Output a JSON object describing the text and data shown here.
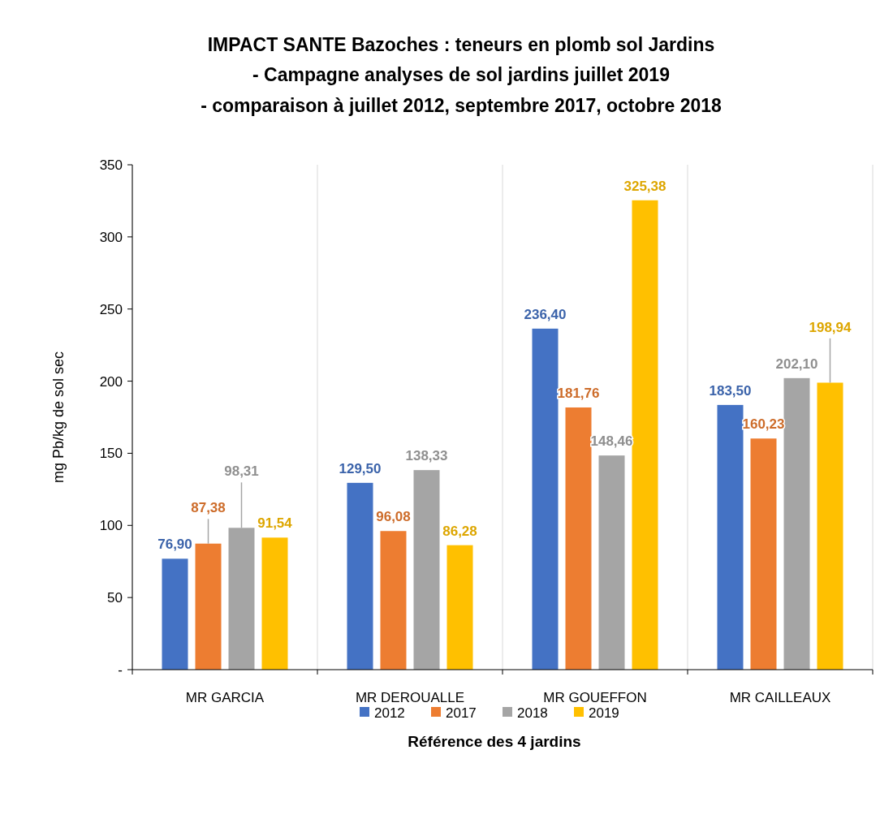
{
  "chart_data": {
    "type": "bar",
    "title": "IMPACT SANTE Bazoches : teneurs en plomb sol Jardins",
    "subtitle": "- Campagne analyses de sol jardins juillet 2019\n- comparaison à juillet 2012, septembre 2017, octobre 2018",
    "xlabel": "Référence des 4 jardins",
    "ylabel": "mg Pb/kg de sol sec",
    "categories": [
      "MR GARCIA",
      "MR DEROUALLE",
      "MR GOUEFFON",
      "MR CAILLEAUX"
    ],
    "series": [
      {
        "name": "2012",
        "color": "#4472c4",
        "values": [
          76.9,
          129.5,
          236.4,
          183.5
        ],
        "value_labels": [
          "76,90",
          "129,50",
          "236,40",
          "183,50"
        ]
      },
      {
        "name": "2017",
        "color": "#ed7d31",
        "values": [
          87.38,
          96.08,
          181.76,
          160.23
        ],
        "value_labels": [
          "87,38",
          "96,08",
          "181,76",
          "160,23"
        ]
      },
      {
        "name": "2018",
        "color": "#a5a5a5",
        "values": [
          98.31,
          138.33,
          148.46,
          202.1
        ],
        "value_labels": [
          "98,31",
          "138,33",
          "148,46",
          "202,10"
        ]
      },
      {
        "name": "2019",
        "color": "#ffc000",
        "values": [
          91.54,
          86.28,
          325.38,
          198.94
        ],
        "value_labels": [
          "91,54",
          "86,28",
          "325,38",
          "198,94"
        ]
      }
    ],
    "ylim": [
      0,
      350
    ],
    "yticks": [
      {
        "value": 0,
        "label": "-"
      },
      50,
      100,
      150,
      200,
      250,
      300,
      350
    ],
    "grid": "x",
    "legend": "bottom"
  }
}
